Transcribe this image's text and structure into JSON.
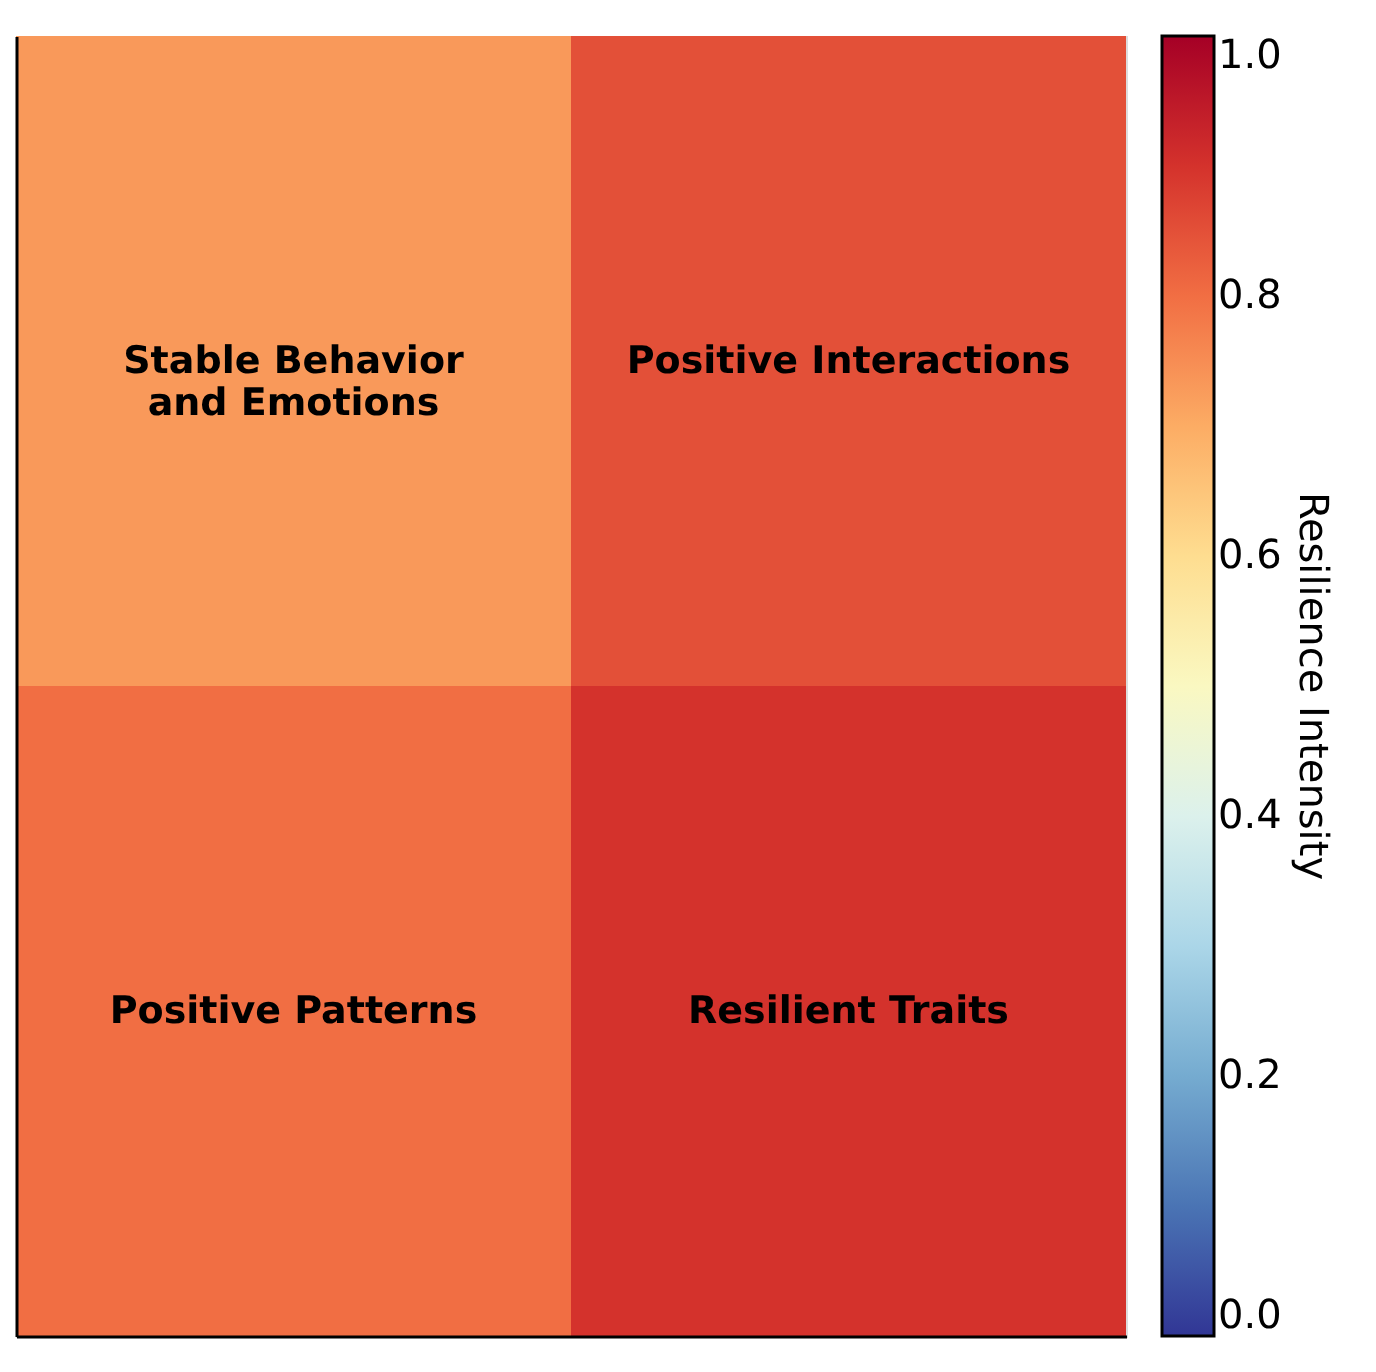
{
  "chart_data": {
    "type": "heatmap",
    "categories": [
      null,
      null
    ],
    "y_categories": [
      null,
      null
    ],
    "cells": [
      [
        0.73,
        0.85
      ],
      [
        0.8,
        0.9
      ]
    ],
    "cell_labels": [
      [
        "Stable Behavior\nand Emotions",
        "Positive Interactions"
      ],
      [
        "Positive Patterns",
        "Resilient Traits"
      ]
    ],
    "clabel": "Resilience Intensity",
    "clim": [
      0,
      1
    ],
    "cticks": [
      {
        "value": 0,
        "label": "0.0"
      },
      {
        "value": 0.2,
        "label": "0.2"
      },
      {
        "value": 0.4,
        "label": "0.4"
      },
      {
        "value": 0.6,
        "label": "0.6"
      },
      {
        "value": 0.8,
        "label": "0.8"
      },
      {
        "value": 1,
        "label": "1.0"
      }
    ],
    "tick_labels": false
  }
}
